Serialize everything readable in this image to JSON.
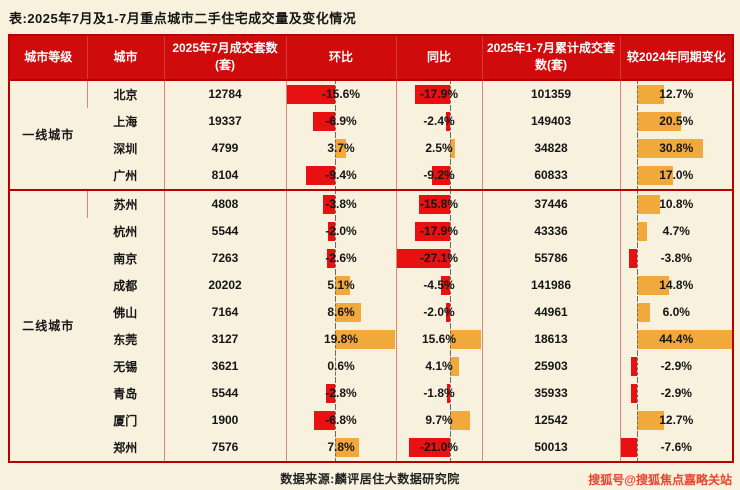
{
  "page": {
    "title": "表:2025年7月及1-7月重点城市二手住宅成交量及变化情况",
    "source": "数据来源:麟评居住大数据研究院",
    "watermark": "搜狐号@搜狐焦点嘉略关站"
  },
  "colors": {
    "background": "#f8f1dd",
    "header_bg": "#cf0b0b",
    "border": "#b80000",
    "negative_bar": "#e81010",
    "positive_bar": "#f2a93c",
    "watermark": "#e8452e",
    "text": "#151515"
  },
  "chart_data": {
    "type": "table",
    "title": "表:2025年7月及1-7月重点城市二手住宅成交量及变化情况",
    "columns": [
      "城市等级",
      "城市",
      "2025年7月成交套数(套)",
      "环比",
      "同比",
      "2025年1-7月累计成交套数(套)",
      "较2024年同期变化"
    ],
    "bar_columns": [
      "mom",
      "yoy",
      "vs2024"
    ],
    "bar_style": "excel-data-bars, red = negative (extends left of dashed zero axis), orange = positive (extends right)",
    "tiers": [
      {
        "label": "一线城市",
        "cities": [
          "北京",
          "上海",
          "深圳",
          "广州"
        ]
      },
      {
        "label": "二线城市",
        "cities": [
          "苏州",
          "杭州",
          "南京",
          "成都",
          "佛山",
          "东莞",
          "无锡",
          "青岛",
          "厦门",
          "郑州"
        ]
      }
    ],
    "rows": [
      {
        "tier": "一线城市",
        "city": "北京",
        "jul_units": "12784",
        "mom": -15.6,
        "yoy": -17.9,
        "cum_units": "101359",
        "vs2024": 12.7
      },
      {
        "tier": "一线城市",
        "city": "上海",
        "jul_units": "19337",
        "mom": -6.9,
        "yoy": -2.4,
        "cum_units": "149403",
        "vs2024": 20.5
      },
      {
        "tier": "一线城市",
        "city": "深圳",
        "jul_units": "4799",
        "mom": 3.7,
        "yoy": 2.5,
        "cum_units": "34828",
        "vs2024": 30.8
      },
      {
        "tier": "一线城市",
        "city": "广州",
        "jul_units": "8104",
        "mom": -9.4,
        "yoy": -9.2,
        "cum_units": "60833",
        "vs2024": 17.0
      },
      {
        "tier": "二线城市",
        "city": "苏州",
        "jul_units": "4808",
        "mom": -3.8,
        "yoy": -15.8,
        "cum_units": "37446",
        "vs2024": 10.8
      },
      {
        "tier": "二线城市",
        "city": "杭州",
        "jul_units": "5544",
        "mom": -2.0,
        "yoy": -17.9,
        "cum_units": "43336",
        "vs2024": 4.7
      },
      {
        "tier": "二线城市",
        "city": "南京",
        "jul_units": "7263",
        "mom": -2.6,
        "yoy": -27.1,
        "cum_units": "55786",
        "vs2024": -3.8
      },
      {
        "tier": "二线城市",
        "city": "成都",
        "jul_units": "20202",
        "mom": 5.1,
        "yoy": -4.5,
        "cum_units": "141986",
        "vs2024": 14.8
      },
      {
        "tier": "二线城市",
        "city": "佛山",
        "jul_units": "7164",
        "mom": 8.6,
        "yoy": -2.0,
        "cum_units": "44961",
        "vs2024": 6.0
      },
      {
        "tier": "二线城市",
        "city": "东莞",
        "jul_units": "3127",
        "mom": 19.8,
        "yoy": 15.6,
        "cum_units": "18613",
        "vs2024": 44.4
      },
      {
        "tier": "二线城市",
        "city": "无锡",
        "jul_units": "3621",
        "mom": 0.6,
        "yoy": 4.1,
        "cum_units": "25903",
        "vs2024": -2.9
      },
      {
        "tier": "二线城市",
        "city": "青岛",
        "jul_units": "5544",
        "mom": -2.8,
        "yoy": -1.8,
        "cum_units": "35933",
        "vs2024": -2.9
      },
      {
        "tier": "二线城市",
        "city": "厦门",
        "jul_units": "1900",
        "mom": -6.8,
        "yoy": 9.7,
        "cum_units": "12542",
        "vs2024": 12.7
      },
      {
        "tier": "二线城市",
        "city": "郑州",
        "jul_units": "7576",
        "mom": 7.8,
        "yoy": -21.0,
        "cum_units": "50013",
        "vs2024": -7.6
      }
    ]
  }
}
